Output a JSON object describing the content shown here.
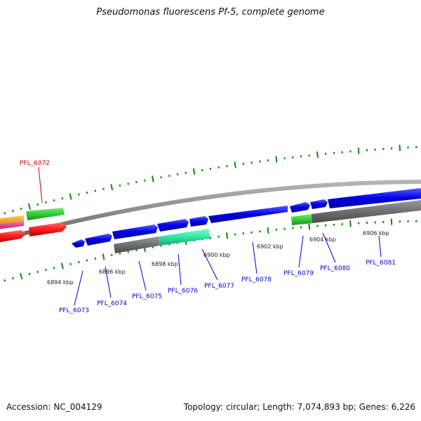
{
  "title": "Pseudomonas fluorescens Pf-5, complete genome",
  "footer": {
    "accession_label": "Accession:",
    "accession": "NC_004129",
    "topology_label": "Topology:",
    "topology": "circular;",
    "length_label": "Length:",
    "length": "7,074,893 bp;",
    "genes_label": "Genes:",
    "genes": "6,226"
  },
  "colors": {
    "forward_gene": "#0000e6",
    "reverse_gene": "#6e6e6e",
    "highlight_gene": "#2ee6a0",
    "rna_gene": "#33cc33",
    "other_red": "#ff1a1a",
    "other_orange": "#ff9900",
    "other_pink": "#e8338a",
    "tick_green": "#0a8a0a",
    "label_blue": "#0000cc",
    "label_red": "#cc0000",
    "backbone": "#8c8c8c"
  },
  "scale": {
    "ticks": [
      {
        "label": "6894 kbp"
      },
      {
        "label": "6896 kbp"
      },
      {
        "label": "6898 kbp"
      },
      {
        "label": "6900 kbp"
      },
      {
        "label": "6902 kbp"
      },
      {
        "label": "6904 kbp"
      },
      {
        "label": "6906 kbp"
      }
    ]
  },
  "gene_labels": [
    {
      "name": "PFL_6072",
      "color": "red"
    },
    {
      "name": "PFL_6073",
      "color": "blue"
    },
    {
      "name": "PFL_6074",
      "color": "blue"
    },
    {
      "name": "PFL_6075",
      "color": "blue"
    },
    {
      "name": "PFL_6076",
      "color": "blue"
    },
    {
      "name": "PFL_6077",
      "color": "blue"
    },
    {
      "name": "PFL_6078",
      "color": "blue"
    },
    {
      "name": "PFL_6079",
      "color": "blue"
    },
    {
      "name": "PFL_6080",
      "color": "blue"
    },
    {
      "name": "PFL_6081",
      "color": "blue"
    }
  ]
}
